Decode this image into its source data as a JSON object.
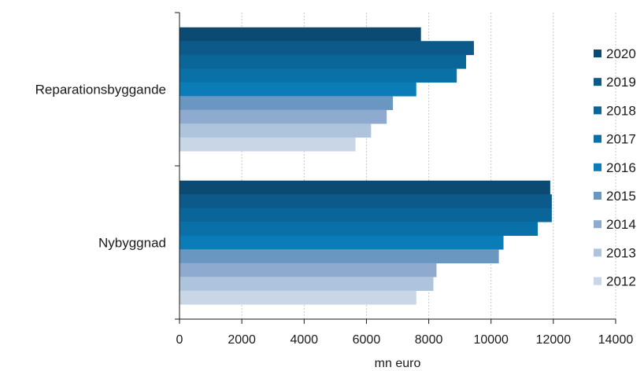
{
  "chart_data": {
    "type": "bar",
    "orientation": "horizontal",
    "categories": [
      "Reparationsbyggande",
      "Nybyggnad"
    ],
    "xlabel": "mn euro",
    "ylabel": "",
    "title": "",
    "xlim": [
      0,
      14000
    ],
    "xticks": [
      0,
      2000,
      4000,
      6000,
      8000,
      10000,
      12000,
      14000
    ],
    "grid": "vertical",
    "legend_position": "right",
    "series": [
      {
        "name": "2020",
        "color": "#0b4a73",
        "values": [
          7750,
          11900
        ]
      },
      {
        "name": "2019",
        "color": "#0b5a8a",
        "values": [
          9450,
          11950
        ]
      },
      {
        "name": "2018",
        "color": "#0a6699",
        "values": [
          9200,
          11950
        ]
      },
      {
        "name": "2017",
        "color": "#0a70a8",
        "values": [
          8900,
          11500
        ]
      },
      {
        "name": "2016",
        "color": "#0a7cb8",
        "values": [
          7600,
          10400
        ]
      },
      {
        "name": "2015",
        "color": "#6a96c2",
        "values": [
          6850,
          10250
        ]
      },
      {
        "name": "2014",
        "color": "#8eabcf",
        "values": [
          6650,
          8250
        ]
      },
      {
        "name": "2013",
        "color": "#aec4dd",
        "values": [
          6150,
          8150
        ]
      },
      {
        "name": "2012",
        "color": "#c8d6e6",
        "values": [
          5650,
          7600
        ]
      }
    ]
  }
}
